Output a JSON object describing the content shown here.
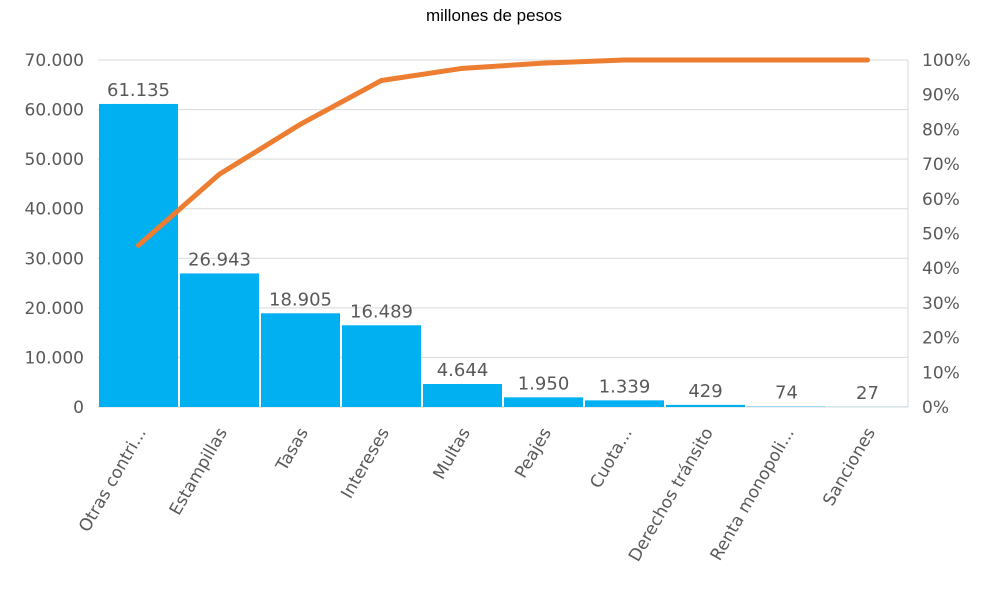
{
  "chart_data": {
    "type": "bar",
    "title": "millones de pesos",
    "categories": [
      "Otras contri...",
      "Estampillas",
      "Tasas",
      "Intereses",
      "Multas",
      "Peajes",
      "Cuota...",
      "Derechos tránsito",
      "Renta monopoli...",
      "Sanciones"
    ],
    "series": [
      {
        "values": [
          61135,
          26943,
          18905,
          16489,
          4644,
          1950,
          1339,
          429,
          74,
          27
        ],
        "color": "#00b0f0",
        "axis": "left"
      },
      {
        "type": "line",
        "values": [
          46.6,
          67.1,
          81.5,
          94.1,
          97.6,
          99.1,
          100.0,
          100.0,
          100.0,
          100.0
        ],
        "color": "#ed7d31",
        "axis": "right"
      }
    ],
    "data_labels": [
      "61.135",
      "26.943",
      "18.905",
      "16.489",
      "4.644",
      "1.950",
      "1.339",
      "429",
      "74",
      "27"
    ],
    "y_left": {
      "lim": [
        0,
        70000
      ],
      "ticks": [
        "0",
        "10.000",
        "20.000",
        "30.000",
        "40.000",
        "50.000",
        "60.000",
        "70.000"
      ]
    },
    "y_right": {
      "lim": [
        0,
        100
      ],
      "ticks": [
        "0%",
        "10%",
        "20%",
        "30%",
        "40%",
        "50%",
        "60%",
        "70%",
        "80%",
        "90%",
        "100%"
      ]
    },
    "grid": true,
    "legend": "none"
  }
}
